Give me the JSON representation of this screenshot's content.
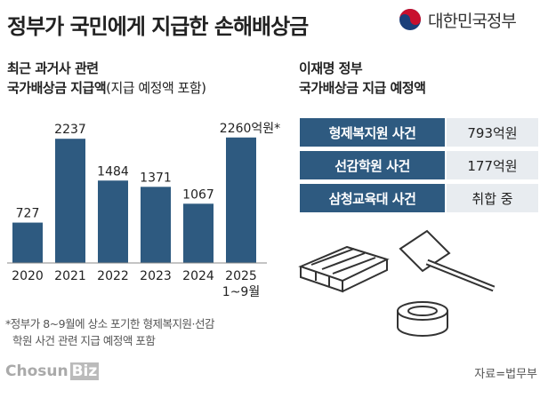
{
  "title": "정부가 국민에게 지급한 손해배상금",
  "government_logo_text": "대한민국정부",
  "left_subtitle": {
    "line1": "최근 과거사 관련",
    "line2_bold": "국가배상금 지급액",
    "line2_light": "(지급 예정액 포함)"
  },
  "right_subtitle": {
    "line1": "이재명 정부",
    "line2": "국가배상금 지급 예정액"
  },
  "chart_data": {
    "type": "bar",
    "categories": [
      "2020",
      "2021",
      "2022",
      "2023",
      "2024",
      "2025"
    ],
    "category_sublabels": [
      "",
      "",
      "",
      "",
      "",
      "1~9월"
    ],
    "values": [
      727,
      2237,
      1484,
      1371,
      1067,
      2260
    ],
    "value_labels": [
      "727",
      "2237",
      "1484",
      "1371",
      "1067",
      "2260억원*"
    ],
    "unit": "억원",
    "ylim": [
      0,
      2400
    ],
    "color": "#2e5a80"
  },
  "cases": [
    {
      "name": "형제복지원 사건",
      "amount": "793억원"
    },
    {
      "name": "선감학원 사건",
      "amount": "177억원"
    },
    {
      "name": "삼청교육대 사건",
      "amount": "취합 중"
    }
  ],
  "footnote": {
    "line1": "*정부가 8~9월에 상소 포기한 형제복지원·선감",
    "line2": "학원 사건 관련 지급 예정액 포함"
  },
  "brand": {
    "part1": "Chosun",
    "part2": "Biz"
  },
  "source": "자료=법무부"
}
